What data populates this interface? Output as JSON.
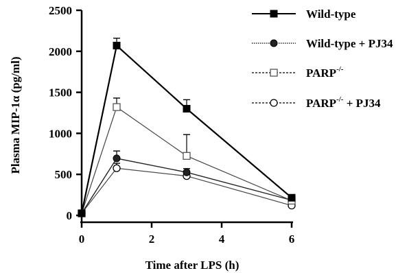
{
  "chart_data": {
    "type": "line",
    "xlabel": "Time after LPS (h)",
    "ylabel": "Plasma MIP-1α (pg/ml)",
    "xlim": [
      0,
      6
    ],
    "ylim": [
      0,
      2500
    ],
    "xticks": [
      0,
      2,
      4,
      6
    ],
    "yticks": [
      0,
      500,
      1000,
      1500,
      2000,
      2500
    ],
    "x": [
      0,
      1,
      3,
      6
    ],
    "legend_position": "top-right",
    "series": [
      {
        "name": "Wild-type",
        "name_parts": [
          "Wild-type"
        ],
        "marker": "filled-square",
        "line": "solid",
        "values": [
          25,
          2070,
          1300,
          215
        ],
        "error": [
          0,
          90,
          110,
          0
        ]
      },
      {
        "name": "Wild-type + PJ34",
        "name_parts": [
          "Wild-type + PJ34"
        ],
        "marker": "filled-circle",
        "line": "dotted",
        "values": [
          25,
          695,
          525,
          185
        ],
        "error": [
          0,
          90,
          0,
          0
        ]
      },
      {
        "name": "PARP-/-",
        "name_parts": [
          "PARP",
          "-/-"
        ],
        "marker": "open-square",
        "line": "dashed",
        "values": [
          25,
          1320,
          725,
          180
        ],
        "error": [
          0,
          110,
          260,
          0
        ]
      },
      {
        "name": "PARP-/- + PJ34",
        "name_parts": [
          "PARP",
          "-/-",
          " + PJ34"
        ],
        "marker": "open-circle",
        "line": "dashed",
        "values": [
          25,
          575,
          480,
          120
        ],
        "error": [
          0,
          60,
          90,
          0
        ]
      }
    ]
  }
}
